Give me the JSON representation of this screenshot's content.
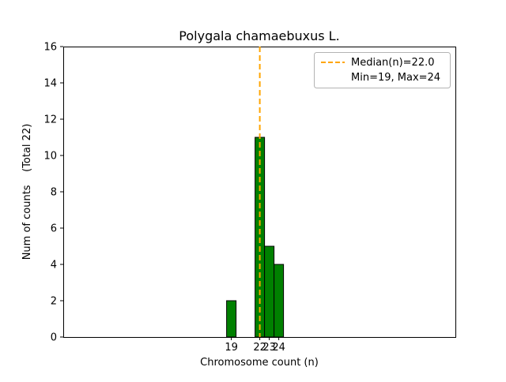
{
  "chart_data": {
    "type": "bar",
    "title": "Polygala chamaebuxus L.",
    "xlabel": "Chromosome count (n)",
    "ylabel": "Num of counts    (Total 22)",
    "x": [
      19,
      22,
      23,
      24
    ],
    "counts": [
      2,
      11,
      5,
      4
    ],
    "total_counts": 22,
    "bin_width": 1,
    "median": 22.0,
    "min": 19,
    "max": 24,
    "xlim": [
      1.3,
      42.6
    ],
    "ylim": [
      0,
      16
    ],
    "xticks": [
      19,
      22,
      23,
      24
    ],
    "yticks": [
      0,
      2,
      4,
      6,
      8,
      10,
      12,
      14,
      16
    ],
    "grid": false,
    "bar_color": "#008000",
    "bar_edge_color": "#000000",
    "median_line_color": "#FFA500",
    "legend_position": "upper right",
    "legend": [
      "Median(n)=22.0",
      "Min=19, Max=24"
    ]
  }
}
